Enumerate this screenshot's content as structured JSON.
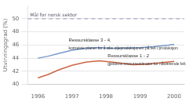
{
  "chart_data": {
    "type": "line",
    "y_label": "Utvinningsgrad (%)",
    "xlim": [
      1995.7,
      2000.3
    ],
    "ylim": [
      40,
      52
    ],
    "xticks": [
      1996,
      1997,
      1998,
      1999,
      2000
    ],
    "yticks": [
      40,
      42,
      44,
      46,
      48,
      50
    ],
    "grid": "y",
    "series": [
      {
        "color": "#7799cc",
        "x": [
          1996,
          1996.3,
          1996.6,
          1997.0,
          1997.4,
          1997.8,
          1998.2,
          1998.6,
          1999.0,
          1999.4,
          1999.8,
          2000.0
        ],
        "values": [
          44.0,
          44.3,
          44.7,
          45.2,
          45.5,
          45.6,
          45.5,
          45.55,
          45.6,
          45.75,
          45.95,
          46.1
        ]
      },
      {
        "color": "#cc6644",
        "x": [
          1996,
          1996.3,
          1996.6,
          1997.0,
          1997.4,
          1997.8,
          1998.2,
          1998.5,
          1998.8,
          1999.2,
          1999.6,
          2000.0
        ],
        "values": [
          41.0,
          41.5,
          42.2,
          42.9,
          43.4,
          43.6,
          43.4,
          43.2,
          43.0,
          43.1,
          43.3,
          43.5
        ]
      }
    ],
    "reference_lines": [
      {
        "y": 50,
        "label": "Mål for norsk sektor",
        "color": "#9999bb"
      }
    ],
    "annotations": [
      {
        "x": 1996.9,
        "texts": [
          {
            "text": "Ressursklasse 3 - 4,",
            "y": 46.4
          },
          {
            "text": "kortreiste planer for å øke oljeproduksjonen på felt i produksjon",
            "y": 45.8
          }
        ]
      },
      {
        "x": 1998.05,
        "texts": [
          {
            "text": "Ressursklasse 1 - 2",
            "y": 43.95
          },
          {
            "text": "gjeldene ressursestimater for nåværende felt",
            "y": 43.35
          }
        ]
      }
    ]
  }
}
